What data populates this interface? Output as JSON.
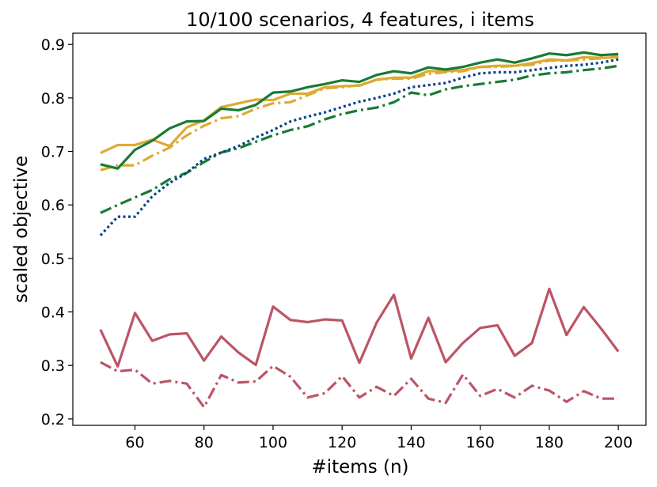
{
  "chart_data": {
    "type": "line",
    "title": "10/100 scenarios, 4 features, i items",
    "xlabel": "#items (n)",
    "ylabel": "scaled objective",
    "xlim": [
      42,
      208
    ],
    "ylim": [
      0.188,
      0.921
    ],
    "xticks": [
      60,
      80,
      100,
      120,
      140,
      160,
      180,
      200
    ],
    "yticks": [
      0.2,
      0.3,
      0.4,
      0.5,
      0.6,
      0.7,
      0.8,
      0.9
    ],
    "grid": false,
    "legend": "none",
    "x": [
      50,
      55,
      60,
      65,
      70,
      75,
      80,
      85,
      90,
      95,
      100,
      105,
      110,
      115,
      120,
      125,
      130,
      135,
      140,
      145,
      150,
      155,
      160,
      165,
      170,
      175,
      180,
      185,
      190,
      195,
      200
    ],
    "series": [
      {
        "color": "#ddaa33",
        "style": "solid",
        "values": [
          0.697,
          0.712,
          0.712,
          0.722,
          0.71,
          0.745,
          0.758,
          0.783,
          0.79,
          0.797,
          0.796,
          0.808,
          0.808,
          0.82,
          0.822,
          0.823,
          0.834,
          0.838,
          0.838,
          0.85,
          0.85,
          0.852,
          0.858,
          0.86,
          0.86,
          0.865,
          0.872,
          0.87,
          0.876,
          0.875,
          0.876
        ]
      },
      {
        "color": "#ddaa33",
        "style": "dashdot",
        "values": [
          0.665,
          0.674,
          0.674,
          0.692,
          0.707,
          0.73,
          0.748,
          0.762,
          0.766,
          0.78,
          0.79,
          0.792,
          0.805,
          0.818,
          0.82,
          0.824,
          0.834,
          0.836,
          0.836,
          0.845,
          0.848,
          0.85,
          0.858,
          0.858,
          0.86,
          0.862,
          0.87,
          0.87,
          0.872,
          0.874,
          0.878
        ]
      },
      {
        "color": "#1a7a35",
        "style": "solid",
        "values": [
          0.676,
          0.668,
          0.703,
          0.72,
          0.743,
          0.756,
          0.757,
          0.78,
          0.777,
          0.787,
          0.81,
          0.812,
          0.82,
          0.826,
          0.833,
          0.83,
          0.843,
          0.85,
          0.846,
          0.857,
          0.853,
          0.858,
          0.866,
          0.872,
          0.866,
          0.874,
          0.883,
          0.88,
          0.885,
          0.88,
          0.882
        ]
      },
      {
        "color": "#1a7a35",
        "style": "dashdot",
        "values": [
          0.585,
          0.6,
          0.614,
          0.628,
          0.648,
          0.66,
          0.68,
          0.698,
          0.706,
          0.718,
          0.73,
          0.74,
          0.747,
          0.76,
          0.77,
          0.777,
          0.782,
          0.792,
          0.81,
          0.805,
          0.816,
          0.822,
          0.826,
          0.83,
          0.834,
          0.842,
          0.846,
          0.848,
          0.852,
          0.855,
          0.86
        ]
      },
      {
        "color": "#004488",
        "style": "dotted",
        "values": [
          0.543,
          0.578,
          0.578,
          0.616,
          0.641,
          0.66,
          0.686,
          0.698,
          0.71,
          0.726,
          0.74,
          0.756,
          0.765,
          0.773,
          0.783,
          0.793,
          0.8,
          0.808,
          0.82,
          0.824,
          0.828,
          0.838,
          0.846,
          0.848,
          0.848,
          0.852,
          0.856,
          0.86,
          0.862,
          0.866,
          0.872
        ]
      },
      {
        "color": "#bb5566",
        "style": "solid",
        "values": [
          0.367,
          0.298,
          0.398,
          0.346,
          0.358,
          0.36,
          0.309,
          0.354,
          0.324,
          0.301,
          0.41,
          0.385,
          0.381,
          0.386,
          0.384,
          0.305,
          0.38,
          0.432,
          0.313,
          0.389,
          0.306,
          0.342,
          0.37,
          0.375,
          0.318,
          0.342,
          0.443,
          0.357,
          0.409,
          0.369,
          0.326
        ]
      },
      {
        "color": "#bb5566",
        "style": "dashdot",
        "values": [
          0.306,
          0.289,
          0.292,
          0.266,
          0.271,
          0.266,
          0.222,
          0.282,
          0.268,
          0.27,
          0.299,
          0.279,
          0.24,
          0.248,
          0.28,
          0.24,
          0.26,
          0.243,
          0.275,
          0.238,
          0.23,
          0.283,
          0.243,
          0.256,
          0.24,
          0.262,
          0.253,
          0.232,
          0.252,
          0.238,
          0.238
        ]
      }
    ]
  }
}
